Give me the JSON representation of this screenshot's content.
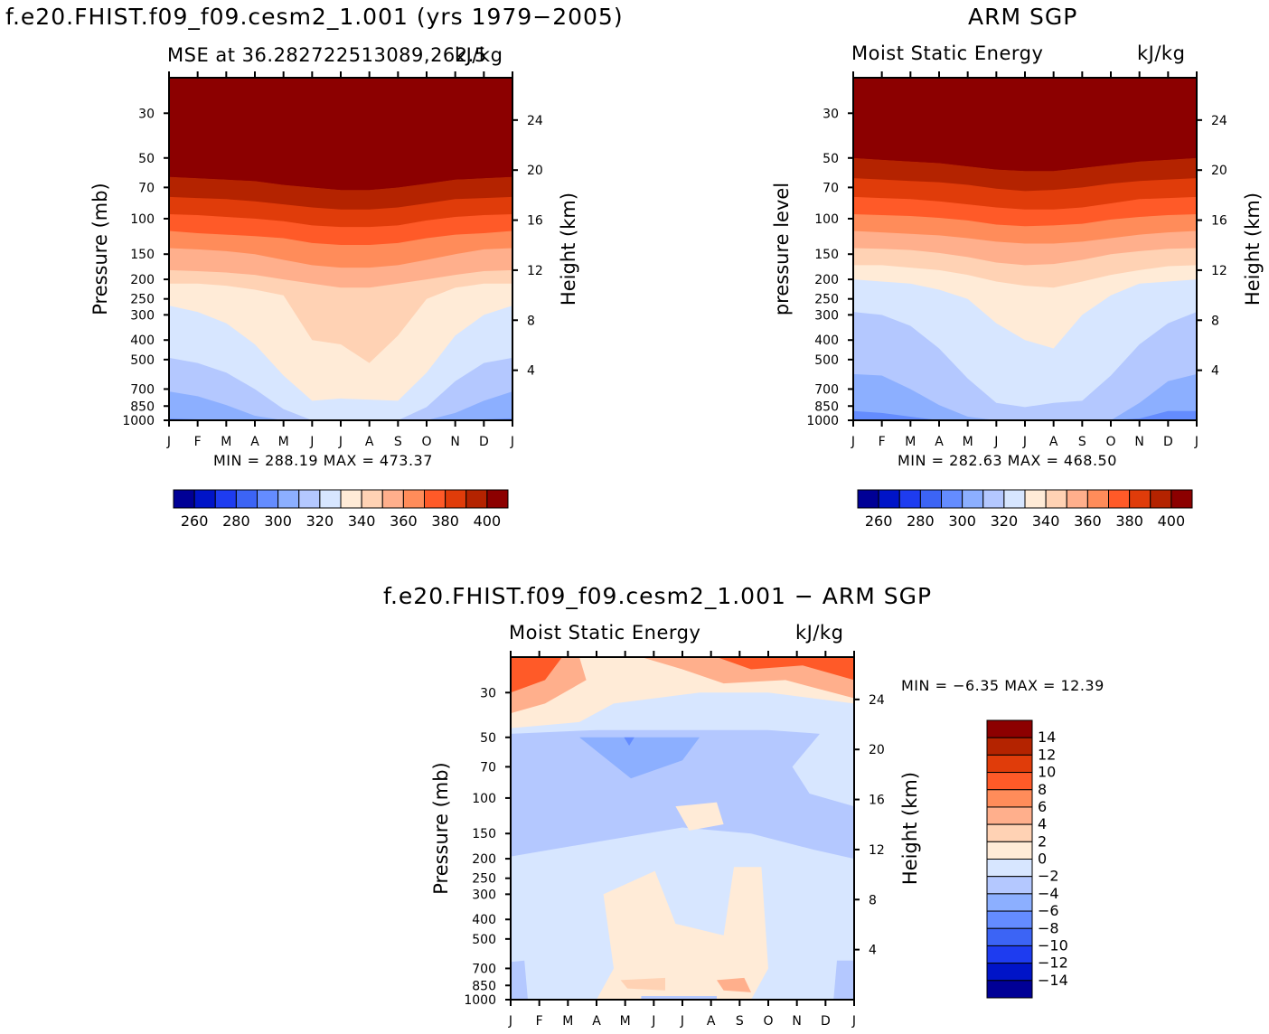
{
  "page": {
    "title_left": "f.e20.FHIST.f09_f09.cesm2_1.001 (yrs 1979−2005)",
    "title_right": "ARM SGP",
    "title_bottom": "f.e20.FHIST.f09_f09.cesm2_1.001 − ARM SGP",
    "colors": {
      "abs_levels": [
        "#000096",
        "#0014c8",
        "#1e3cf0",
        "#3c64f5",
        "#648cff",
        "#8cafff",
        "#b4c8ff",
        "#d7e6ff",
        "#ffebd7",
        "#ffd2b4",
        "#ffaf8c",
        "#ff8c5a",
        "#ff5a28",
        "#e03c0a",
        "#b42300",
        "#8c0000"
      ],
      "diff_levels": [
        "#000096",
        "#0014c8",
        "#1e3cf0",
        "#3c64f5",
        "#648cff",
        "#8cafff",
        "#b4c8ff",
        "#d7e6ff",
        "#ffebd7",
        "#ffd2b4",
        "#ffaf8c",
        "#ff8c5a",
        "#ff5a28",
        "#e03c0a",
        "#b42300",
        "#8c0000"
      ]
    }
  },
  "chart_data": [
    {
      "id": "model",
      "type": "heatmap",
      "left_label": "MSE at 36.282722513089,262.5",
      "right_label": "kJ/kg",
      "ylabel": "Pressure (mb)",
      "ylabel2": "Height (km)",
      "x_ticks": [
        "J",
        "F",
        "M",
        "A",
        "M",
        "J",
        "J",
        "A",
        "S",
        "O",
        "N",
        "D",
        "J"
      ],
      "y_ticks": [
        30,
        50,
        70,
        100,
        150,
        200,
        250,
        300,
        400,
        500,
        700,
        850,
        1000
      ],
      "y2_ticks": [
        24,
        20,
        16,
        12,
        8,
        4
      ],
      "ylim": [
        1000,
        20
      ],
      "min_label": "MIN = 288.19 MAX = 473.37",
      "colorbar_labels": [
        "260",
        "280",
        "300",
        "320",
        "340",
        "360",
        "380",
        "400"
      ],
      "bands_at_months": {
        "note": "pressure (mb) of contour level boundaries, months J..J",
        "levels": [
          300,
          310,
          320,
          330,
          340,
          350,
          360,
          370,
          380,
          390,
          400
        ],
        "boundaries": [
          [
            980,
            990,
            1000,
            1000,
            1000,
            1000,
            1000,
            1000,
            1000,
            1000,
            1000,
            990,
            980
          ],
          [
            720,
            760,
            840,
            950,
            1000,
            1000,
            1000,
            1000,
            1000,
            1000,
            920,
            800,
            720
          ],
          [
            490,
            520,
            580,
            700,
            880,
            1000,
            1000,
            1000,
            1000,
            860,
            640,
            520,
            490
          ],
          [
            270,
            290,
            330,
            420,
            600,
            800,
            780,
            790,
            800,
            580,
            380,
            300,
            270
          ],
          [
            210,
            210,
            215,
            225,
            240,
            400,
            420,
            520,
            380,
            250,
            220,
            210,
            210
          ],
          [
            180,
            182,
            185,
            190,
            200,
            210,
            220,
            220,
            210,
            200,
            190,
            182,
            180
          ],
          [
            140,
            142,
            145,
            150,
            160,
            170,
            175,
            175,
            170,
            160,
            150,
            142,
            140
          ],
          [
            115,
            118,
            120,
            122,
            125,
            132,
            135,
            135,
            132,
            125,
            120,
            118,
            115
          ],
          [
            95,
            96,
            98,
            100,
            103,
            108,
            110,
            110,
            108,
            102,
            98,
            96,
            95
          ],
          [
            78,
            79,
            80,
            82,
            85,
            88,
            90,
            90,
            88,
            84,
            80,
            79,
            78
          ],
          [
            62,
            63,
            64,
            65,
            68,
            70,
            72,
            72,
            70,
            67,
            64,
            63,
            62
          ]
        ]
      }
    },
    {
      "id": "obs",
      "type": "heatmap",
      "left_label": "Moist Static Energy",
      "right_label": "kJ/kg",
      "ylabel": "pressure level",
      "ylabel2": "Height (km)",
      "x_ticks": [
        "J",
        "F",
        "M",
        "A",
        "M",
        "J",
        "J",
        "A",
        "S",
        "O",
        "N",
        "D",
        "J"
      ],
      "y_ticks": [
        30,
        50,
        70,
        100,
        150,
        200,
        250,
        300,
        400,
        500,
        700,
        850,
        1000
      ],
      "y2_ticks": [
        24,
        20,
        16,
        12,
        8,
        4
      ],
      "ylim": [
        1000,
        20
      ],
      "min_label": "MIN = 282.63 MAX = 468.50",
      "colorbar_labels": [
        "260",
        "280",
        "300",
        "320",
        "340",
        "360",
        "380",
        "400"
      ],
      "bands_at_months": {
        "levels": [
          300,
          310,
          320,
          330,
          340,
          350,
          360,
          370,
          380,
          390,
          400
        ],
        "boundaries": [
          [
            900,
            920,
            960,
            1000,
            1000,
            1000,
            1000,
            1000,
            1000,
            1000,
            980,
            900,
            900
          ],
          [
            590,
            600,
            700,
            840,
            960,
            1000,
            1000,
            1000,
            1000,
            1000,
            820,
            640,
            590
          ],
          [
            290,
            300,
            340,
            440,
            620,
            820,
            860,
            820,
            800,
            600,
            420,
            330,
            290
          ],
          [
            200,
            205,
            210,
            225,
            250,
            330,
            400,
            440,
            300,
            240,
            210,
            205,
            200
          ],
          [
            170,
            170,
            175,
            180,
            190,
            205,
            215,
            220,
            205,
            190,
            180,
            172,
            170
          ],
          [
            140,
            141,
            143,
            148,
            155,
            165,
            170,
            168,
            160,
            150,
            145,
            141,
            140
          ],
          [
            115,
            117,
            119,
            121,
            125,
            130,
            133,
            133,
            130,
            125,
            120,
            117,
            115
          ],
          [
            95,
            96,
            97,
            99,
            102,
            107,
            109,
            108,
            106,
            101,
            98,
            96,
            95
          ],
          [
            78,
            79,
            80,
            82,
            85,
            88,
            90,
            90,
            88,
            84,
            80,
            79,
            78
          ],
          [
            63,
            64,
            65,
            66,
            68,
            71,
            73,
            72,
            70,
            67,
            65,
            64,
            63
          ],
          [
            50,
            51,
            52,
            53,
            55,
            57,
            58,
            58,
            56,
            54,
            52,
            51,
            50
          ]
        ]
      }
    },
    {
      "id": "diff",
      "type": "heatmap",
      "left_label": "Moist Static Energy",
      "right_label": "kJ/kg",
      "ylabel": "Pressure (mb)",
      "ylabel2": "Height (km)",
      "x_ticks": [
        "J",
        "F",
        "M",
        "A",
        "M",
        "J",
        "J",
        "A",
        "S",
        "O",
        "N",
        "D",
        "J"
      ],
      "y_ticks": [
        30,
        50,
        70,
        100,
        150,
        200,
        250,
        300,
        400,
        500,
        700,
        850,
        1000
      ],
      "y2_ticks": [
        24,
        20,
        16,
        12,
        8,
        4
      ],
      "ylim": [
        1000,
        20
      ],
      "min_label": "MIN = −6.35 MAX = 12.39",
      "colorbar_labels": [
        "14",
        "12",
        "10",
        "8",
        "6",
        "4",
        "2",
        "0",
        "−2",
        "−4",
        "−6",
        "−8",
        "−10",
        "−12",
        "−14"
      ]
    }
  ]
}
